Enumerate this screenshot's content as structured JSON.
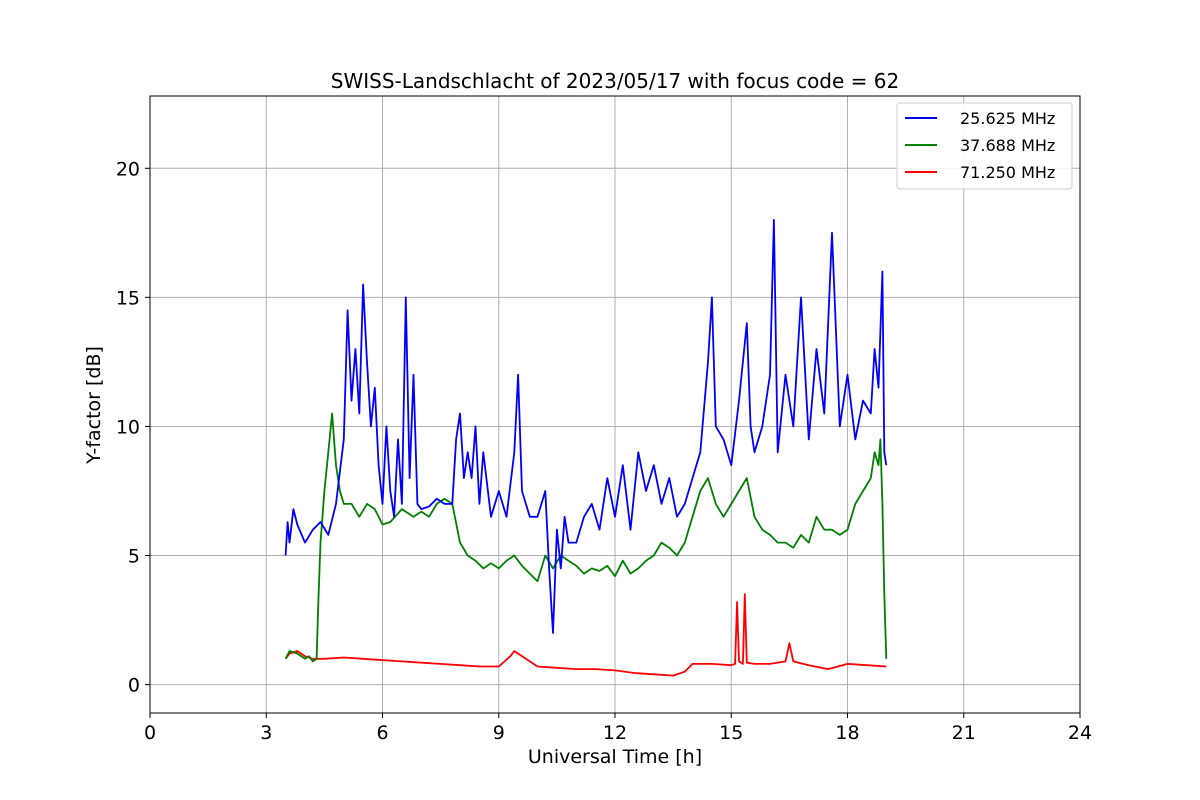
{
  "chart_data": {
    "type": "line",
    "title": "SWISS-Landschlacht of 2023/05/17 with focus code = 62",
    "xlabel": "Universal Time [h]",
    "ylabel": "Y-factor [dB]",
    "xlim": [
      0,
      24
    ],
    "ylim": [
      -1.1,
      22.8
    ],
    "xticks": [
      0,
      3,
      6,
      9,
      12,
      15,
      18,
      21,
      24
    ],
    "yticks": [
      0,
      5,
      10,
      15,
      20
    ],
    "grid": true,
    "legend_position": "top-right",
    "series": [
      {
        "name": "25.625 MHz",
        "color": "#0000ff",
        "x": [
          3.5,
          3.55,
          3.6,
          3.7,
          3.8,
          4.0,
          4.2,
          4.4,
          4.6,
          4.8,
          5.0,
          5.1,
          5.2,
          5.3,
          5.4,
          5.5,
          5.6,
          5.7,
          5.8,
          5.9,
          6.0,
          6.1,
          6.2,
          6.3,
          6.4,
          6.5,
          6.6,
          6.7,
          6.8,
          6.9,
          7.0,
          7.2,
          7.4,
          7.6,
          7.8,
          7.9,
          8.0,
          8.1,
          8.2,
          8.3,
          8.4,
          8.5,
          8.6,
          8.8,
          9.0,
          9.2,
          9.4,
          9.5,
          9.6,
          9.8,
          10.0,
          10.2,
          10.3,
          10.4,
          10.5,
          10.6,
          10.7,
          10.8,
          11.0,
          11.2,
          11.4,
          11.6,
          11.8,
          12.0,
          12.2,
          12.4,
          12.6,
          12.8,
          13.0,
          13.2,
          13.4,
          13.6,
          13.8,
          14.0,
          14.2,
          14.4,
          14.5,
          14.6,
          14.8,
          15.0,
          15.2,
          15.4,
          15.5,
          15.6,
          15.8,
          16.0,
          16.1,
          16.2,
          16.4,
          16.6,
          16.8,
          17.0,
          17.2,
          17.4,
          17.6,
          17.8,
          18.0,
          18.2,
          18.4,
          18.6,
          18.7,
          18.8,
          18.9,
          18.95,
          19.0
        ],
        "values": [
          5.0,
          6.3,
          5.5,
          6.8,
          6.2,
          5.5,
          6.0,
          6.3,
          5.8,
          7.0,
          9.5,
          14.5,
          11.0,
          13.0,
          10.5,
          15.5,
          12.5,
          10.0,
          11.5,
          8.5,
          7.0,
          10.0,
          7.5,
          6.5,
          9.5,
          7.0,
          15.0,
          8.0,
          12.0,
          7.0,
          6.8,
          6.9,
          7.2,
          7.0,
          7.0,
          9.5,
          10.5,
          8.0,
          9.0,
          8.0,
          10.0,
          7.0,
          9.0,
          6.5,
          7.5,
          6.5,
          9.0,
          12.0,
          7.5,
          6.5,
          6.5,
          7.5,
          4.5,
          2.0,
          6.0,
          4.5,
          6.5,
          5.5,
          5.5,
          6.5,
          7.0,
          6.0,
          8.0,
          6.5,
          8.5,
          6.0,
          9.0,
          7.5,
          8.5,
          7.0,
          8.0,
          6.5,
          7.0,
          8.0,
          9.0,
          12.5,
          15.0,
          10.0,
          9.5,
          8.5,
          11.0,
          14.0,
          10.0,
          9.0,
          10.0,
          12.0,
          18.0,
          9.0,
          12.0,
          10.0,
          15.0,
          9.5,
          13.0,
          10.5,
          17.5,
          10.0,
          12.0,
          9.5,
          11.0,
          10.5,
          13.0,
          11.5,
          16.0,
          9.0,
          8.5
        ]
      },
      {
        "name": "37.688 MHz",
        "color": "#008000",
        "x": [
          3.5,
          3.6,
          3.8,
          4.0,
          4.1,
          4.2,
          4.3,
          4.35,
          4.4,
          4.5,
          4.6,
          4.7,
          4.8,
          4.9,
          5.0,
          5.2,
          5.4,
          5.6,
          5.8,
          6.0,
          6.2,
          6.5,
          6.8,
          7.0,
          7.2,
          7.4,
          7.6,
          7.8,
          8.0,
          8.2,
          8.4,
          8.6,
          8.8,
          9.0,
          9.2,
          9.4,
          9.6,
          9.8,
          10.0,
          10.2,
          10.4,
          10.6,
          10.8,
          11.0,
          11.2,
          11.4,
          11.6,
          11.8,
          12.0,
          12.2,
          12.4,
          12.6,
          12.8,
          13.0,
          13.2,
          13.4,
          13.6,
          13.8,
          14.0,
          14.2,
          14.4,
          14.6,
          14.8,
          15.0,
          15.2,
          15.4,
          15.6,
          15.8,
          16.0,
          16.2,
          16.4,
          16.6,
          16.8,
          17.0,
          17.2,
          17.4,
          17.6,
          17.8,
          18.0,
          18.2,
          18.4,
          18.6,
          18.7,
          18.8,
          18.85,
          18.9,
          18.95,
          19.0
        ],
        "values": [
          1.0,
          1.3,
          1.2,
          1.0,
          1.1,
          0.9,
          1.0,
          3.5,
          5.5,
          7.5,
          9.0,
          10.5,
          8.5,
          7.5,
          7.0,
          7.0,
          6.5,
          7.0,
          6.8,
          6.2,
          6.3,
          6.8,
          6.5,
          6.7,
          6.5,
          7.0,
          7.2,
          7.0,
          5.5,
          5.0,
          4.8,
          4.5,
          4.7,
          4.5,
          4.8,
          5.0,
          4.6,
          4.3,
          4.0,
          5.0,
          4.5,
          5.0,
          4.8,
          4.6,
          4.3,
          4.5,
          4.4,
          4.6,
          4.2,
          4.8,
          4.3,
          4.5,
          4.8,
          5.0,
          5.5,
          5.3,
          5.0,
          5.5,
          6.5,
          7.5,
          8.0,
          7.0,
          6.5,
          7.0,
          7.5,
          8.0,
          6.5,
          6.0,
          5.8,
          5.5,
          5.5,
          5.3,
          5.8,
          5.5,
          6.5,
          6.0,
          6.0,
          5.8,
          6.0,
          7.0,
          7.5,
          8.0,
          9.0,
          8.5,
          9.5,
          7.0,
          3.5,
          1.0
        ]
      },
      {
        "name": "71.250 MHz",
        "color": "#ff0000",
        "x": [
          3.5,
          3.6,
          3.8,
          4.0,
          4.2,
          4.5,
          5.0,
          5.5,
          6.0,
          6.5,
          7.0,
          7.5,
          8.0,
          8.5,
          9.0,
          9.3,
          9.4,
          9.5,
          9.7,
          10.0,
          10.5,
          11.0,
          11.5,
          12.0,
          12.5,
          13.0,
          13.5,
          13.8,
          14.0,
          14.5,
          15.0,
          15.1,
          15.15,
          15.2,
          15.3,
          15.35,
          15.4,
          15.6,
          16.0,
          16.4,
          16.5,
          16.6,
          17.0,
          17.5,
          18.0,
          18.5,
          19.0
        ],
        "values": [
          1.0,
          1.2,
          1.3,
          1.1,
          1.0,
          1.0,
          1.05,
          1.0,
          0.95,
          0.9,
          0.85,
          0.8,
          0.75,
          0.7,
          0.7,
          1.1,
          1.3,
          1.2,
          1.0,
          0.7,
          0.65,
          0.6,
          0.6,
          0.55,
          0.45,
          0.4,
          0.35,
          0.5,
          0.8,
          0.8,
          0.75,
          0.8,
          3.2,
          0.9,
          0.8,
          3.5,
          0.85,
          0.8,
          0.8,
          0.9,
          1.6,
          0.9,
          0.75,
          0.6,
          0.8,
          0.75,
          0.7
        ]
      }
    ]
  }
}
